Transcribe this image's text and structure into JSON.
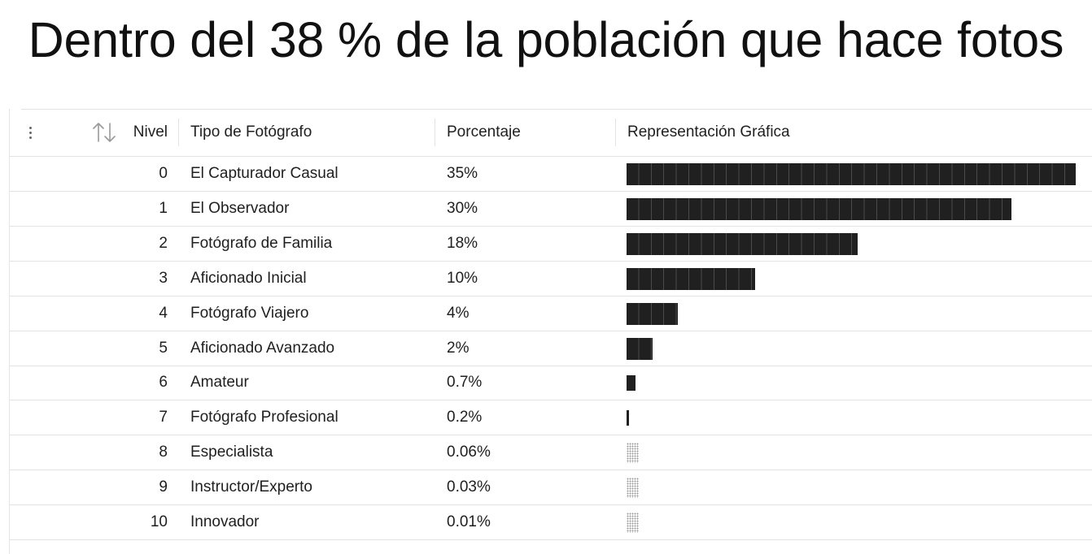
{
  "title": "Dentro del 38 % de la población que hace fotos",
  "table": {
    "columns": {
      "nivel": "Nivel",
      "tipo": "Tipo de Fotógrafo",
      "porcentaje": "Porcentaje",
      "representacion": "Representación Gráfica"
    },
    "header_icons": [
      "more-vertical-icon",
      "sort-arrows-icon"
    ],
    "rows": [
      {
        "nivel": "0",
        "tipo": "El Capturador Casual",
        "porcentaje": "35%",
        "value": 35
      },
      {
        "nivel": "1",
        "tipo": "El Observador",
        "porcentaje": "30%",
        "value": 30
      },
      {
        "nivel": "2",
        "tipo": "Fotógrafo de Familia",
        "porcentaje": "18%",
        "value": 18
      },
      {
        "nivel": "3",
        "tipo": "Aficionado Inicial",
        "porcentaje": "10%",
        "value": 10
      },
      {
        "nivel": "4",
        "tipo": "Fotógrafo Viajero",
        "porcentaje": "4%",
        "value": 4
      },
      {
        "nivel": "5",
        "tipo": "Aficionado Avanzado",
        "porcentaje": "2%",
        "value": 2
      },
      {
        "nivel": "6",
        "tipo": "Amateur",
        "porcentaje": "0.7%",
        "value": 0.7
      },
      {
        "nivel": "7",
        "tipo": "Fotógrafo Profesional",
        "porcentaje": "0.2%",
        "value": 0.2
      },
      {
        "nivel": "8",
        "tipo": "Especialista",
        "porcentaje": "0.06%",
        "value": 0.06
      },
      {
        "nivel": "9",
        "tipo": "Instructor/Experto",
        "porcentaje": "0.03%",
        "value": 0.03
      },
      {
        "nivel": "10",
        "tipo": "Innovador",
        "porcentaje": "0.01%",
        "value": 0.01
      }
    ]
  },
  "colors": {
    "bar": "#202020",
    "grid_line": "#e3e3e3",
    "text": "#1f1f1f"
  }
}
